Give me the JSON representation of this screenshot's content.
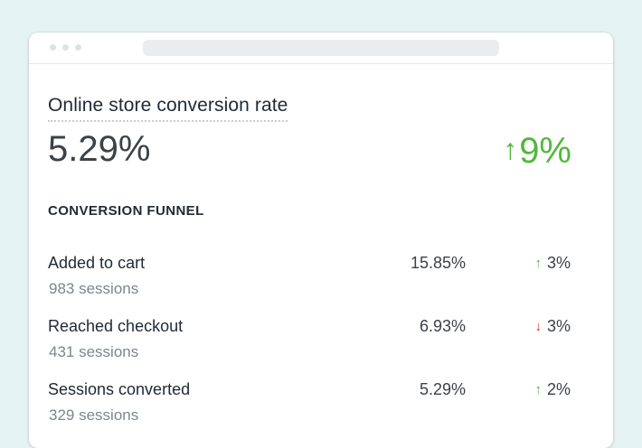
{
  "metric": {
    "title": "Online store conversion rate",
    "value": "5.29%",
    "change_arrow": "↑",
    "change": "9%",
    "change_color": "#50b83c"
  },
  "funnel": {
    "heading": "CONVERSION FUNNEL",
    "rows": [
      {
        "label": "Added to cart",
        "sessions": "983 sessions",
        "percent": "15.85%",
        "arrow": "↑",
        "direction": "up",
        "change": "3%"
      },
      {
        "label": "Reached checkout",
        "sessions": "431 sessions",
        "percent": "6.93%",
        "arrow": "↓",
        "direction": "down",
        "change": "3%"
      },
      {
        "label": "Sessions converted",
        "sessions": "329 sessions",
        "percent": "5.29%",
        "arrow": "↑",
        "direction": "up",
        "change": "2%"
      }
    ]
  },
  "colors": {
    "up": "#50b83c",
    "down": "#de3618",
    "background": "#e6f3f3"
  }
}
